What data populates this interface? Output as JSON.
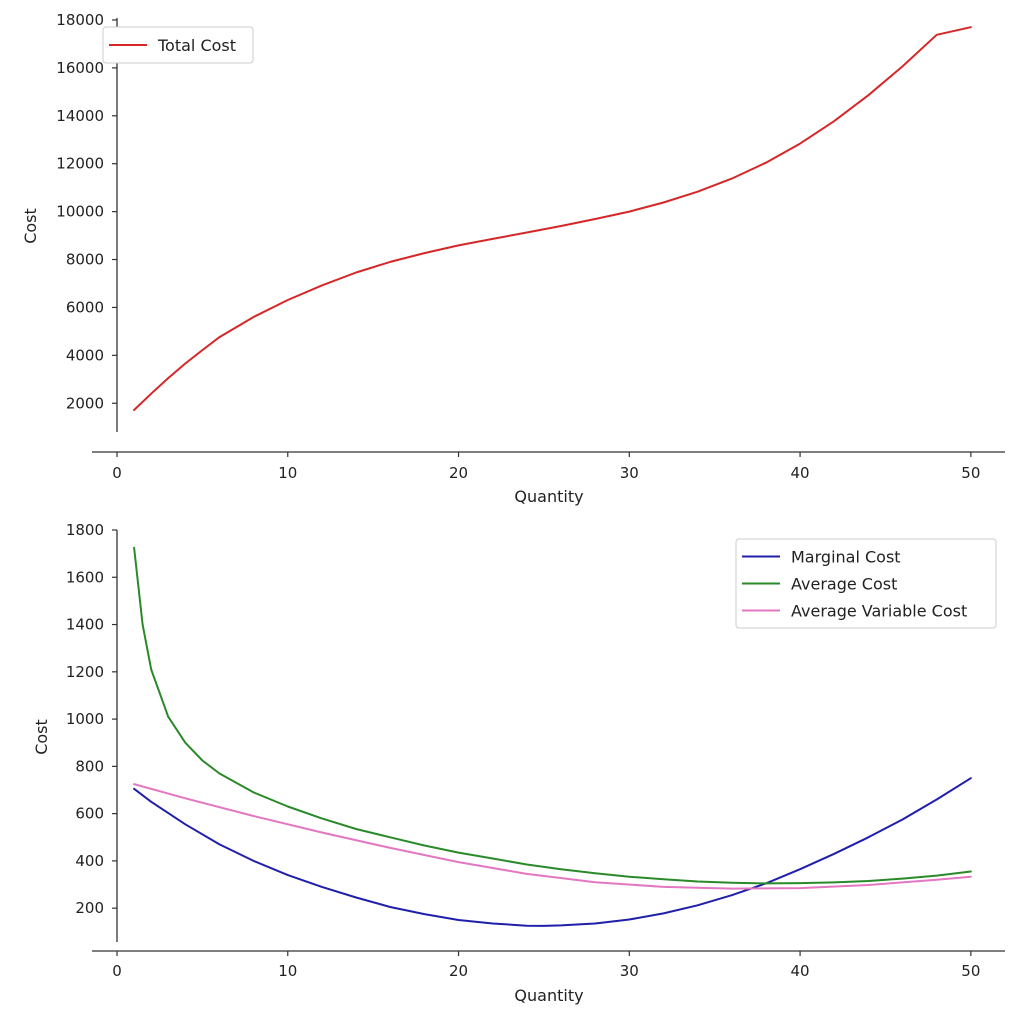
{
  "chart_data": [
    {
      "type": "line",
      "xlabel": "Quantity",
      "ylabel": "Cost",
      "xlim": [
        0,
        52
      ],
      "ylim": [
        800,
        18500
      ],
      "x_ticks": [
        "0",
        "10",
        "20",
        "30",
        "40",
        "50"
      ],
      "y_ticks": [
        "2000",
        "4000",
        "6000",
        "8000",
        "10000",
        "12000",
        "14000",
        "16000",
        "18000"
      ],
      "legend_position": "top-left",
      "grid": false,
      "series": [
        {
          "name": "Total Cost",
          "color": "#d62728",
          "x": [
            1,
            2,
            3,
            4,
            5,
            6,
            8,
            10,
            12,
            14,
            16,
            18,
            20,
            22,
            24,
            26,
            28,
            30,
            32,
            34,
            36,
            38,
            40,
            42,
            44,
            46,
            48,
            50
          ],
          "y": [
            1720,
            2400,
            3050,
            3660,
            4220,
            4760,
            5600,
            6310,
            6920,
            7460,
            7900,
            8270,
            8590,
            8860,
            9130,
            9400,
            9690,
            10000,
            10380,
            10830,
            11380,
            12040,
            12840,
            13780,
            14860,
            16060,
            17380,
            17700
          ]
        }
      ]
    },
    {
      "type": "line",
      "xlabel": "Quantity",
      "ylabel": "Cost",
      "xlim": [
        0,
        52
      ],
      "ylim": [
        40,
        1800
      ],
      "x_ticks": [
        "0",
        "10",
        "20",
        "30",
        "40",
        "50"
      ],
      "y_ticks": [
        "200",
        "400",
        "600",
        "800",
        "1000",
        "1200",
        "1400",
        "1600",
        "1800"
      ],
      "legend_position": "top-right",
      "grid": false,
      "series": [
        {
          "name": "Marginal Cost",
          "color": "#1f1faa",
          "x": [
            1,
            2,
            4,
            6,
            8,
            10,
            12,
            14,
            16,
            18,
            20,
            22,
            24,
            25,
            26,
            28,
            30,
            32,
            34,
            36,
            38,
            40,
            42,
            44,
            46,
            48,
            50
          ],
          "y": [
            705,
            650,
            555,
            470,
            400,
            340,
            290,
            245,
            205,
            175,
            150,
            135,
            126,
            125,
            127,
            135,
            152,
            178,
            212,
            255,
            305,
            365,
            430,
            500,
            575,
            660,
            750
          ]
        },
        {
          "name": "Average Cost",
          "color": "#2a8a2a",
          "x": [
            1,
            1.5,
            2,
            3,
            4,
            5,
            6,
            8,
            10,
            12,
            14,
            16,
            18,
            20,
            22,
            24,
            26,
            28,
            30,
            32,
            34,
            36,
            38,
            40,
            42,
            44,
            46,
            48,
            50
          ],
          "y": [
            1725,
            1400,
            1210,
            1010,
            900,
            825,
            770,
            690,
            630,
            580,
            535,
            500,
            465,
            435,
            410,
            385,
            365,
            348,
            333,
            322,
            313,
            308,
            305,
            306,
            309,
            315,
            325,
            338,
            355
          ]
        },
        {
          "name": "Average Variable Cost",
          "color": "#e377c2",
          "x": [
            1,
            4,
            8,
            12,
            16,
            20,
            24,
            28,
            32,
            36,
            40,
            44,
            48,
            50
          ],
          "y": [
            725,
            665,
            590,
            520,
            455,
            395,
            345,
            310,
            290,
            283,
            285,
            298,
            320,
            333
          ]
        }
      ]
    }
  ]
}
